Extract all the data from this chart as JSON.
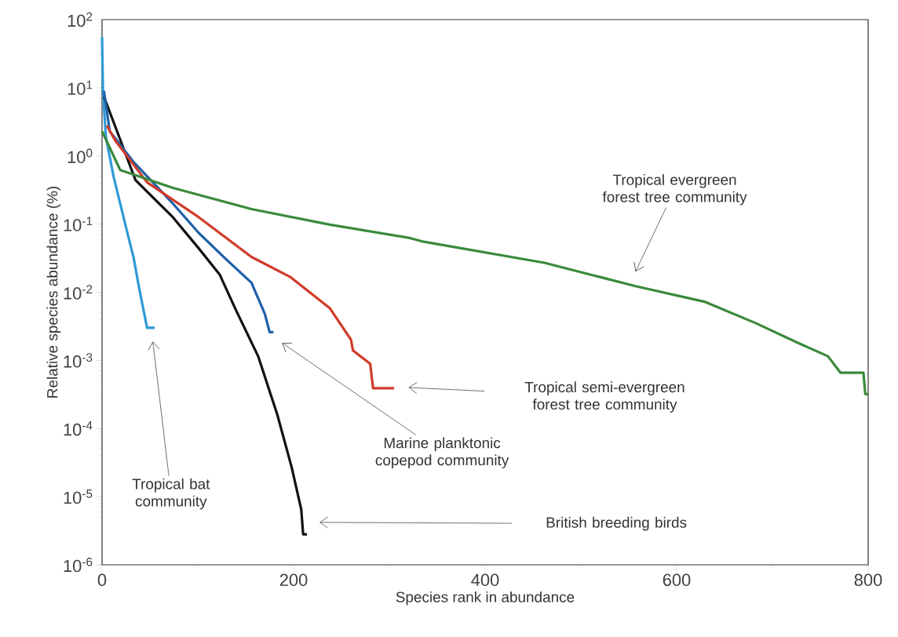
{
  "chart_data": {
    "type": "line",
    "xlabel": "Species rank in abundance",
    "ylabel": "Relative species abundance (%)",
    "log": "y",
    "grid": false,
    "marker": "none",
    "line_style": "solid",
    "xlim": [
      0,
      800
    ],
    "xticks": [
      0,
      200,
      400,
      600,
      800
    ],
    "ylim": [
      1e-06,
      100
    ],
    "yticks": [
      {
        "value": 1e-06,
        "label": "10$^{-6}$"
      },
      {
        "value": 1e-05,
        "label": "10$^{-5}$"
      },
      {
        "value": 0.0001,
        "label": "10$^{-4}$"
      },
      {
        "value": 0.001,
        "label": "10$^{-3}$"
      },
      {
        "value": 0.01,
        "label": "10$^{-2}$"
      },
      {
        "value": 0.1,
        "label": "10$^{-1}$"
      },
      {
        "value": 1,
        "label": "10$^{0}$"
      },
      {
        "value": 10,
        "label": "10$^{1}$"
      },
      {
        "value": 100,
        "label": "10$^{2}$"
      }
    ],
    "series": [
      {
        "color": "#2e9bd6",
        "x": [
          0,
          1,
          4,
          12,
          25,
          33,
          39,
          47,
          55
        ],
        "values": [
          56,
          9,
          1.9,
          0.5,
          0.09,
          0.032,
          0.011,
          0.003,
          0.003
        ]
      },
      {
        "color": "#111111",
        "x": [
          2,
          35,
          74,
          101,
          123,
          139,
          163,
          183,
          198,
          208,
          210,
          214
        ],
        "values": [
          7.4,
          0.44,
          0.126,
          0.044,
          0.018,
          0.0058,
          0.00115,
          0.00016,
          2.7e-05,
          6.5e-06,
          2.8e-06,
          2.8e-06
        ]
      },
      {
        "color": "#1f5fa8",
        "x": [
          2,
          8,
          33,
          74,
          101,
          129,
          156,
          170,
          175,
          179
        ],
        "values": [
          9,
          2.3,
          0.81,
          0.2,
          0.074,
          0.031,
          0.0138,
          0.0048,
          0.0026,
          0.0026
        ]
      },
      {
        "color": "#d13a2a",
        "x": [
          5,
          14,
          47,
          101,
          156,
          197,
          238,
          260,
          262,
          280,
          283,
          305
        ],
        "values": [
          2.8,
          1.66,
          0.41,
          0.126,
          0.033,
          0.0166,
          0.0058,
          0.002,
          0.0014,
          0.00089,
          0.00039,
          0.00039
        ]
      },
      {
        "color": "#3a8a3a",
        "x": [
          0,
          19,
          74,
          156,
          238,
          320,
          336,
          462,
          557,
          630,
          683,
          727,
          758,
          771,
          795,
          797,
          800
        ],
        "values": [
          2.3,
          0.62,
          0.34,
          0.166,
          0.098,
          0.063,
          0.055,
          0.027,
          0.0123,
          0.0072,
          0.0035,
          0.0018,
          0.00115,
          0.00066,
          0.00066,
          0.00032,
          0.00032
        ]
      }
    ],
    "annotations": [
      "Tropical bat community",
      "Marine planktonic copepod community",
      "Tropical semi-evergreen forest tree community",
      "British breeding birds",
      "Tropical evergreen forest tree community"
    ]
  }
}
